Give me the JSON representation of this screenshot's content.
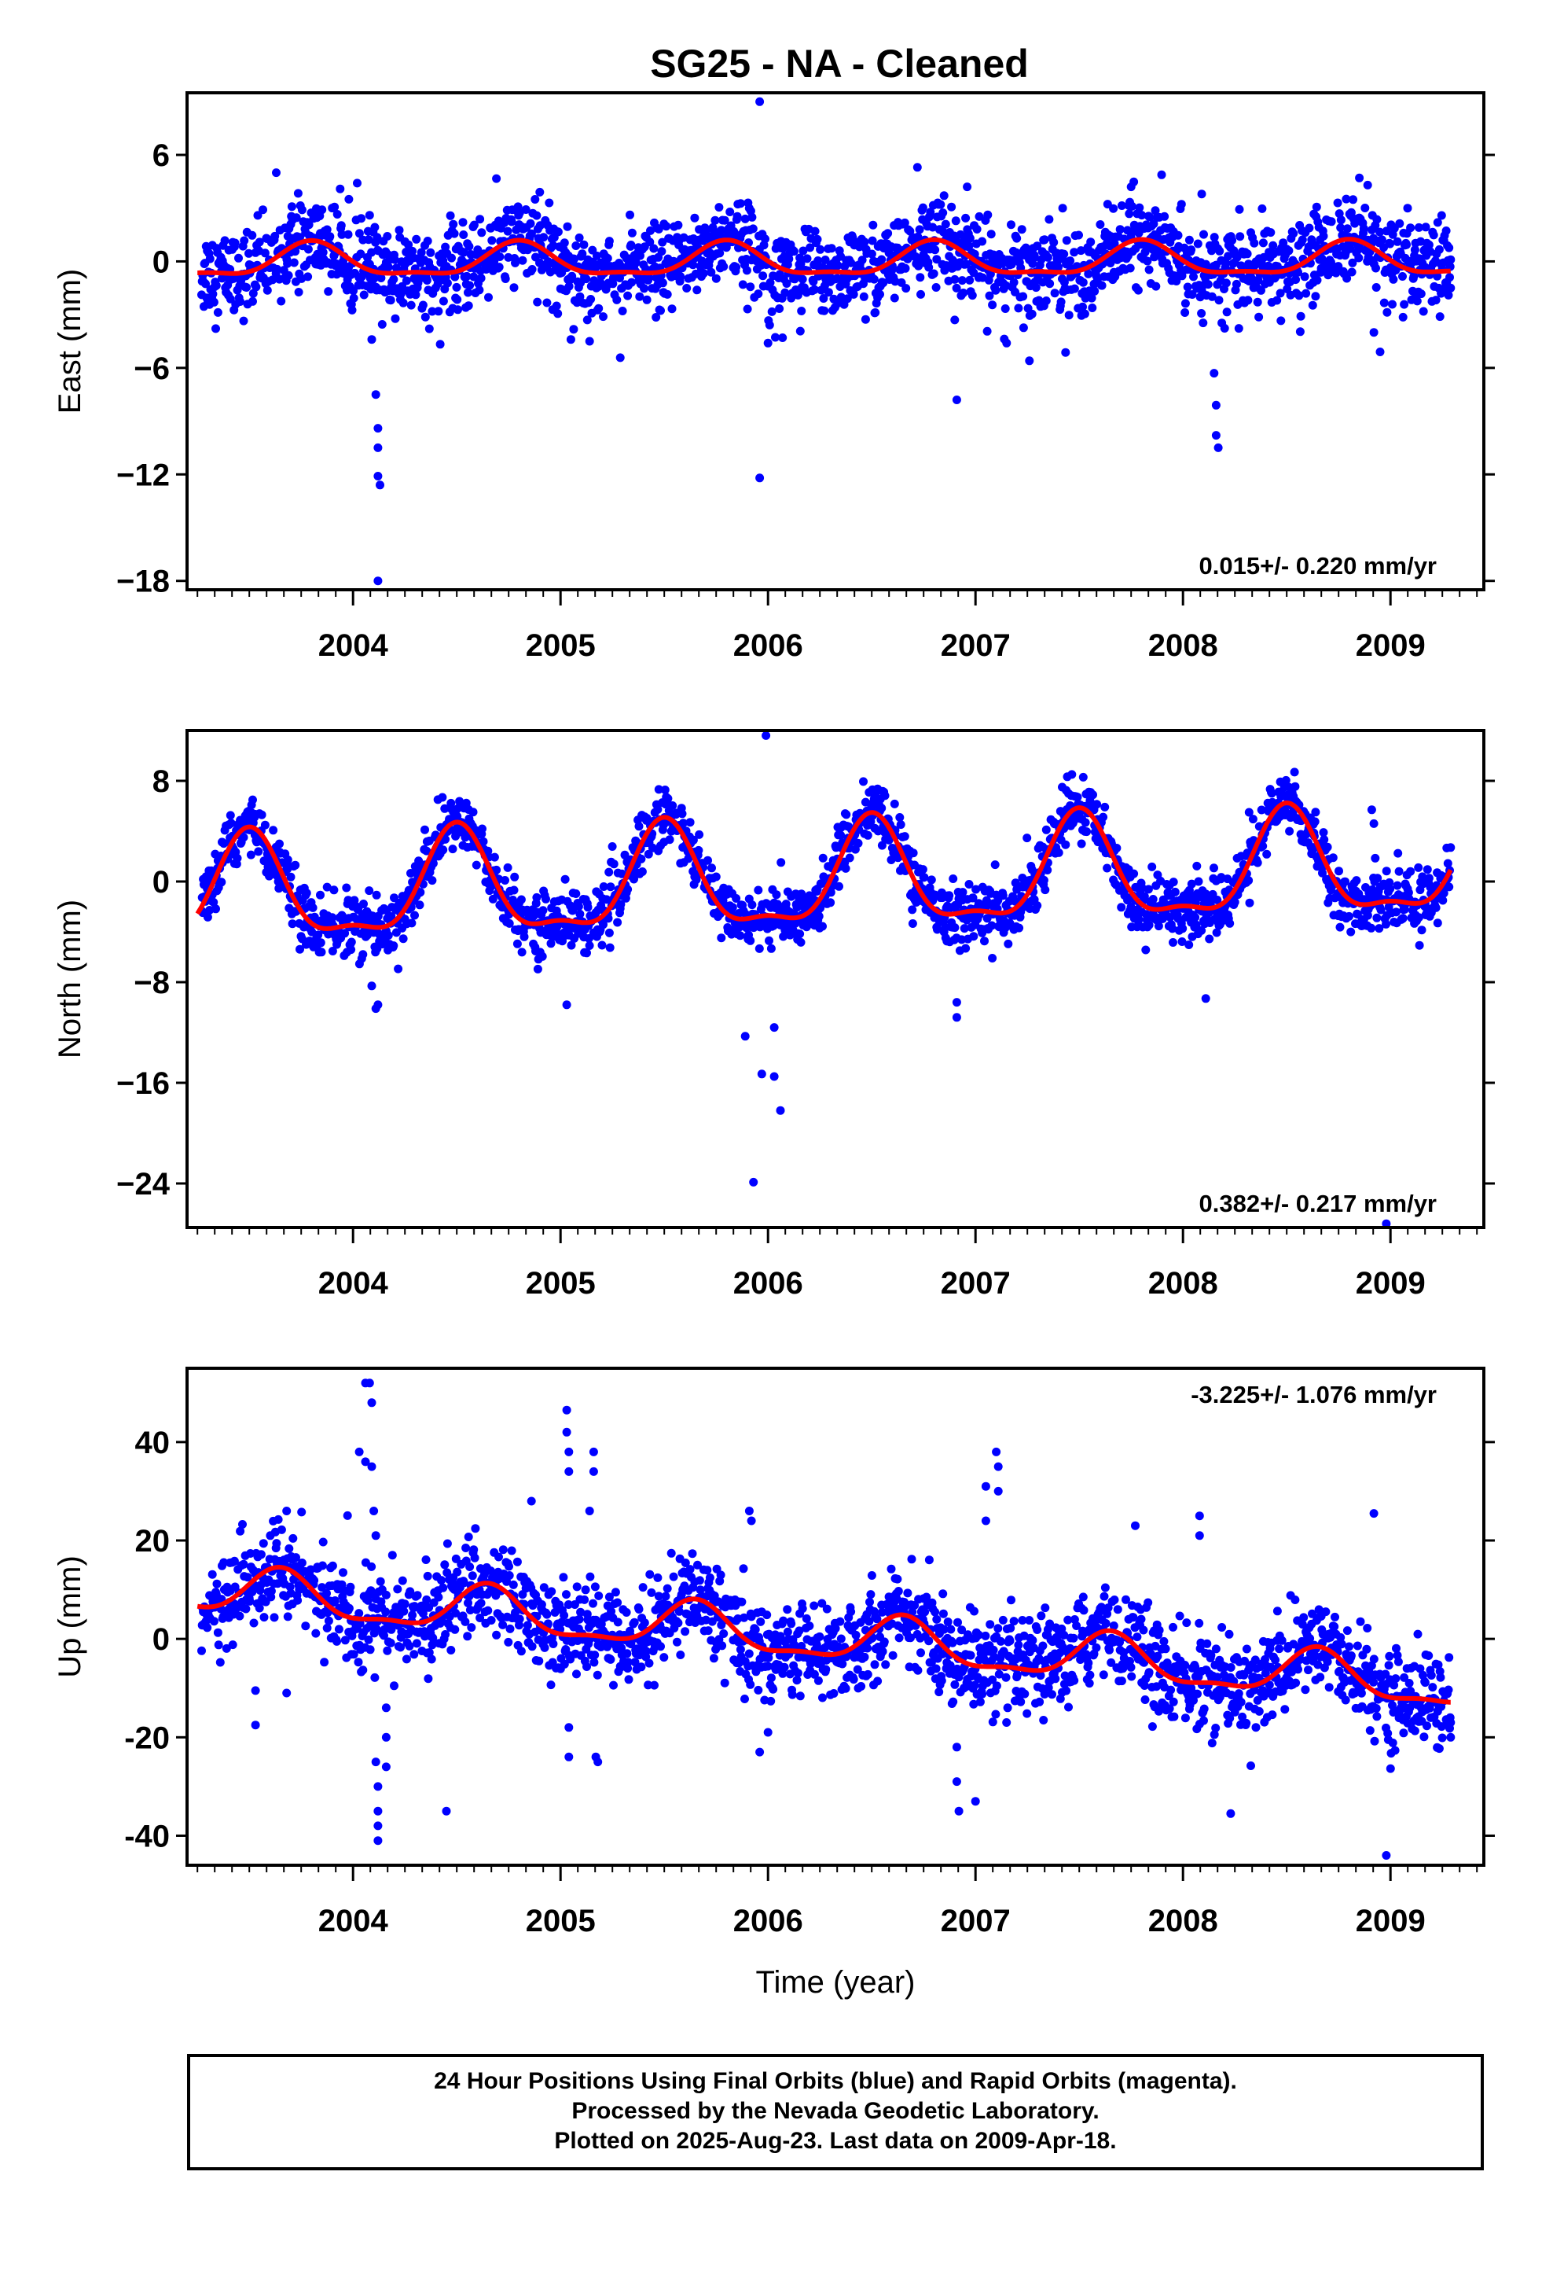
{
  "title": "SG25  - NA - Cleaned",
  "caption": {
    "line1": "24 Hour Positions Using Final Orbits (blue) and Rapid Orbits (magenta).",
    "line2": "Processed by the Nevada Geodetic Laboratory.",
    "line3": "Plotted on 2025-Aug-23. Last data on 2009-Apr-18."
  },
  "colors": {
    "points": "#0000ff",
    "model": "#ff0000",
    "axes": "#000000"
  },
  "chart_data": [
    {
      "type": "scatter",
      "title": "SG25  - NA - Cleaned",
      "ylabel": "East (mm)",
      "xlabel": "",
      "xlim": [
        2003.2,
        2009.45
      ],
      "ylim": [
        -18.5,
        9.5
      ],
      "yticks": [
        6,
        0,
        -6,
        -12,
        -18
      ],
      "ytick_labels": [
        "6",
        "0",
        "−6",
        "−12",
        "−18"
      ],
      "xticks": [
        2004,
        2005,
        2006,
        2007,
        2008,
        2009
      ],
      "xtick_labels": [
        "2004",
        "2005",
        "2006",
        "2007",
        "2008",
        "2009"
      ],
      "rate_text": "0.015+/- 0.220 mm/yr",
      "rate_position": "bottom-right",
      "data_span": [
        2003.27,
        2009.29
      ],
      "model": {
        "offset": 0.0,
        "trend": 0.015,
        "amplitude": 0.9,
        "phase_peak": 0.8
      },
      "scatter_sd": 1.2,
      "outliers": [
        [
          2003.63,
          5.0
        ],
        [
          2003.98,
          3.5
        ],
        [
          2004.08,
          2.6
        ],
        [
          2004.09,
          -4.4
        ],
        [
          2004.11,
          -7.5
        ],
        [
          2004.12,
          -9.4
        ],
        [
          2004.12,
          -10.5
        ],
        [
          2004.12,
          -12.1
        ],
        [
          2004.13,
          -12.6
        ],
        [
          2004.12,
          -18.0
        ],
        [
          2004.9,
          3.9
        ],
        [
          2005.05,
          -4.4
        ],
        [
          2005.14,
          -4.5
        ],
        [
          2005.96,
          9.0
        ],
        [
          2005.96,
          -12.2
        ],
        [
          2006.0,
          -4.6
        ],
        [
          2006.07,
          -4.3
        ],
        [
          2006.72,
          5.3
        ],
        [
          2006.9,
          -3.3
        ],
        [
          2006.91,
          -7.8
        ],
        [
          2006.96,
          4.2
        ],
        [
          2007.15,
          -4.6
        ],
        [
          2007.26,
          -5.6
        ],
        [
          2007.42,
          3.0
        ],
        [
          2007.75,
          4.2
        ],
        [
          2008.09,
          3.8
        ],
        [
          2008.15,
          -6.3
        ],
        [
          2008.16,
          -8.1
        ],
        [
          2008.16,
          -9.8
        ],
        [
          2008.17,
          -10.5
        ],
        [
          2008.85,
          4.7
        ],
        [
          2008.89,
          4.3
        ],
        [
          2008.92,
          -4.0
        ],
        [
          2008.95,
          -5.1
        ],
        [
          2009.29,
          0.1
        ],
        [
          2009.29,
          -1.5
        ]
      ]
    },
    {
      "type": "scatter",
      "ylabel": "North (mm)",
      "xlabel": "",
      "xlim": [
        2003.2,
        2009.45
      ],
      "ylim": [
        -27.5,
        12.0
      ],
      "yticks": [
        8,
        0,
        -8,
        -16,
        -24
      ],
      "ytick_labels": [
        "8",
        "0",
        "−8",
        "−16",
        "−24"
      ],
      "xticks": [
        2004,
        2005,
        2006,
        2007,
        2008,
        2009
      ],
      "xtick_labels": [
        "2004",
        "2005",
        "2006",
        "2007",
        "2008",
        "2009"
      ],
      "rate_text": "0.382+/- 0.217 mm/yr",
      "rate_position": "bottom-right",
      "data_span": [
        2003.27,
        2009.29
      ],
      "model": {
        "offset": 0.0,
        "trend": 0.382,
        "amplitude": 4.0,
        "phase_peak": 0.5
      },
      "scatter_sd": 1.2,
      "outliers": [
        [
          2004.09,
          -8.3
        ],
        [
          2004.11,
          -10.1
        ],
        [
          2004.12,
          -9.8
        ],
        [
          2005.03,
          -9.8
        ],
        [
          2005.89,
          -12.3
        ],
        [
          2005.93,
          -23.9
        ],
        [
          2005.97,
          -15.3
        ],
        [
          2005.99,
          11.6
        ],
        [
          2006.03,
          -11.6
        ],
        [
          2006.03,
          -15.5
        ],
        [
          2006.06,
          -18.2
        ],
        [
          2006.91,
          -9.6
        ],
        [
          2006.91,
          -10.8
        ],
        [
          2008.11,
          -9.3
        ],
        [
          2008.91,
          5.7
        ],
        [
          2008.92,
          4.6
        ],
        [
          2008.98,
          -27.2
        ],
        [
          2009.29,
          2.7
        ]
      ]
    },
    {
      "type": "scatter",
      "ylabel": "Up (mm)",
      "xlabel": "Time (year)",
      "xlim": [
        2003.2,
        2009.45
      ],
      "ylim": [
        -46.0,
        55.0
      ],
      "yticks": [
        40,
        20,
        0,
        -20,
        -40
      ],
      "ytick_labels": [
        "40",
        "20",
        "0",
        "-20",
        "-40"
      ],
      "xticks": [
        2004,
        2005,
        2006,
        2007,
        2008,
        2009
      ],
      "xtick_labels": [
        "2004",
        "2005",
        "2006",
        "2007",
        "2008",
        "2009"
      ],
      "rate_text": "-3.225+/- 1.076 mm/yr",
      "rate_position": "top-right",
      "data_span": [
        2003.27,
        2009.29
      ],
      "model": {
        "offset": 0.0,
        "trend": -3.225,
        "amplitude": 4.5,
        "phase_peak": 0.65
      },
      "scatter_sd": 4.8,
      "outliers": [
        [
          2003.53,
          -10.5
        ],
        [
          2003.53,
          -17.5
        ],
        [
          2003.68,
          26.0
        ],
        [
          2003.68,
          -11.0
        ],
        [
          2004.03,
          38.0
        ],
        [
          2004.06,
          52.0
        ],
        [
          2004.06,
          36.0
        ],
        [
          2004.08,
          52.0
        ],
        [
          2004.09,
          48.0
        ],
        [
          2004.09,
          35.0
        ],
        [
          2004.1,
          26.0
        ],
        [
          2004.11,
          21.0
        ],
        [
          2004.11,
          -25.0
        ],
        [
          2004.12,
          -30.0
        ],
        [
          2004.12,
          -35.0
        ],
        [
          2004.12,
          -38.0
        ],
        [
          2004.12,
          -41.0
        ],
        [
          2004.16,
          -14.0
        ],
        [
          2004.16,
          -20.0
        ],
        [
          2004.16,
          -26.0
        ],
        [
          2004.45,
          -35.0
        ],
        [
          2004.86,
          28.0
        ],
        [
          2005.03,
          46.5
        ],
        [
          2005.03,
          42.0
        ],
        [
          2005.04,
          38.0
        ],
        [
          2005.04,
          34.0
        ],
        [
          2005.04,
          -18.0
        ],
        [
          2005.04,
          -24.0
        ],
        [
          2005.14,
          26.0
        ],
        [
          2005.16,
          38.0
        ],
        [
          2005.16,
          34.0
        ],
        [
          2005.17,
          -24.0
        ],
        [
          2005.18,
          -25.0
        ],
        [
          2005.91,
          26.0
        ],
        [
          2005.92,
          24.0
        ],
        [
          2005.96,
          -23.0
        ],
        [
          2006.0,
          -19.0
        ],
        [
          2006.91,
          -22.0
        ],
        [
          2006.91,
          -29.0
        ],
        [
          2006.92,
          -35.0
        ],
        [
          2007.0,
          -33.0
        ],
        [
          2007.05,
          31.0
        ],
        [
          2007.05,
          24.0
        ],
        [
          2007.1,
          38.0
        ],
        [
          2007.11,
          35.0
        ],
        [
          2007.11,
          30.0
        ],
        [
          2007.77,
          23.0
        ],
        [
          2008.08,
          25.0
        ],
        [
          2008.08,
          21.0
        ],
        [
          2008.23,
          -35.5
        ],
        [
          2008.92,
          25.5
        ],
        [
          2008.98,
          -44.0
        ],
        [
          2009.29,
          -17.0
        ],
        [
          2009.29,
          -20.0
        ]
      ]
    }
  ]
}
